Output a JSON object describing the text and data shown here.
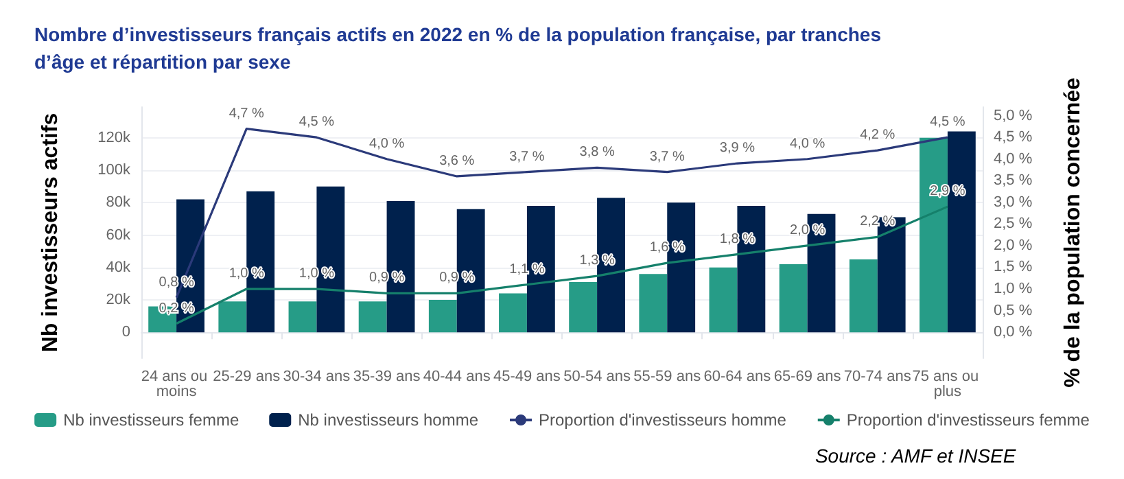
{
  "chart_data": {
    "type": "bar",
    "title": "Nombre d’investisseurs français actifs en 2022 en % de la population française, par tranches d’âge et répartition par sexe",
    "ylabel": "Nb investisseurs actifs",
    "y2label": "% de la population concernée",
    "annotations": [
      "Source : AMF et INSEE"
    ],
    "categories": [
      "24 ans ou moins",
      "25-29 ans",
      "30-34 ans",
      "35-39 ans",
      "40-44 ans",
      "45-49 ans",
      "50-54 ans",
      "55-59 ans",
      "60-64 ans",
      "65-69 ans",
      "70-74 ans",
      "75 ans ou plus"
    ],
    "series": [
      {
        "name": "Nb investisseurs femme",
        "color": "#269c87",
        "values": [
          16000,
          19000,
          19000,
          19000,
          20000,
          24000,
          31000,
          36000,
          40000,
          42000,
          45000,
          120000
        ]
      },
      {
        "name": "Nb investisseurs homme",
        "color": "#00214d",
        "values": [
          82000,
          87000,
          90000,
          81000,
          76000,
          78000,
          83000,
          80000,
          78000,
          73000,
          71000,
          124000
        ]
      },
      {
        "name": "Proportion d'investisseurs homme",
        "type": "line",
        "axis": "y2",
        "color": "#2b3a7a",
        "values": [
          0.8,
          4.7,
          4.5,
          4.0,
          3.6,
          3.7,
          3.8,
          3.7,
          3.9,
          4.0,
          4.2,
          4.5
        ],
        "value_labels": [
          "0,8 %",
          "4,7 %",
          "4,5 %",
          "4,0 %",
          "3,6 %",
          "3,7 %",
          "3,8 %",
          "3,7 %",
          "3,9 %",
          "4,0 %",
          "4,2 %",
          "4,5 %"
        ]
      },
      {
        "name": "Proportion d'investisseurs femme",
        "type": "line",
        "axis": "y2",
        "color": "#15806b",
        "values": [
          0.2,
          1.0,
          1.0,
          0.9,
          0.9,
          1.1,
          1.3,
          1.6,
          1.8,
          2.0,
          2.2,
          2.9
        ],
        "value_labels": [
          "0,2 %",
          "1,0 %",
          "1,0 %",
          "0,9 %",
          "0,9 %",
          "1,1 %",
          "1,3 %",
          "1,6 %",
          "1,8 %",
          "2,0 %",
          "2,2 %",
          "2,9 %"
        ]
      }
    ],
    "ylim": [
      -16000,
      139000
    ],
    "yticks": [
      {
        "value": 0,
        "label": "0"
      },
      {
        "value": 20000,
        "label": "20k"
      },
      {
        "value": 40000,
        "label": "40k"
      },
      {
        "value": 60000,
        "label": "60k"
      },
      {
        "value": 80000,
        "label": "80k"
      },
      {
        "value": 100000,
        "label": "100k"
      },
      {
        "value": 120000,
        "label": "120k"
      }
    ],
    "y2lim": [
      -0.6,
      5.2
    ],
    "y2ticks": [
      {
        "value": 0,
        "label": "0,0 %"
      },
      {
        "value": 0.5,
        "label": "0,5 %"
      },
      {
        "value": 1,
        "label": "1,0 %"
      },
      {
        "value": 1.5,
        "label": "1,5 %"
      },
      {
        "value": 2,
        "label": "2,0 %"
      },
      {
        "value": 2.5,
        "label": "2,5 %"
      },
      {
        "value": 3,
        "label": "3,0 %"
      },
      {
        "value": 3.5,
        "label": "3,5 %"
      },
      {
        "value": 4,
        "label": "4,0 %"
      },
      {
        "value": 4.5,
        "label": "4,5 %"
      },
      {
        "value": 5,
        "label": "5,0 %"
      }
    ],
    "grid": "y",
    "legend": "bottom",
    "marker": "none",
    "line_style": "solid"
  }
}
